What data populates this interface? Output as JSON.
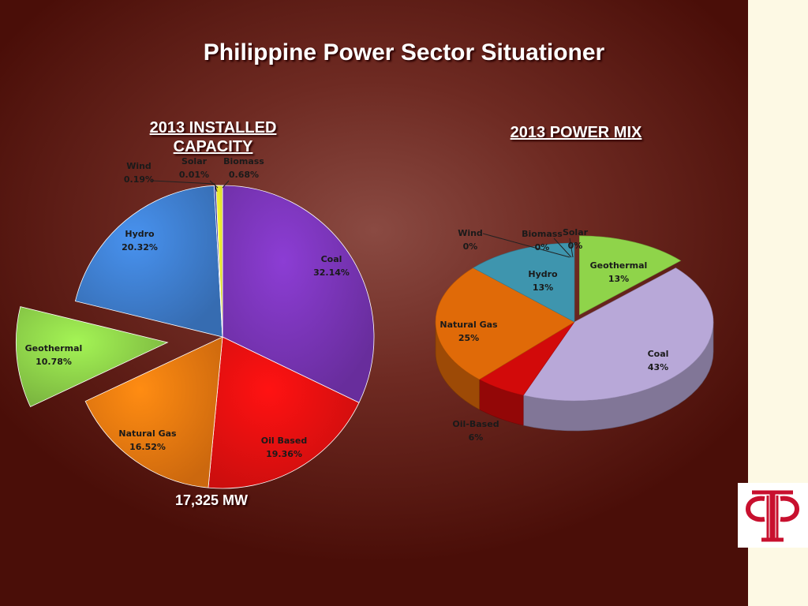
{
  "title": "Philippine Power Sector Situationer",
  "chart_data": [
    {
      "type": "pie",
      "title_line1": "2013 INSTALLED",
      "title_line2": "CAPACITY",
      "footer": "17,325 MW",
      "categories": [
        "Coal",
        "Oil Based",
        "Natural Gas",
        "Geothermal",
        "Hydro",
        "Wind",
        "Solar",
        "Biomass"
      ],
      "values": [
        32.14,
        19.36,
        16.52,
        10.78,
        20.32,
        0.19,
        0.01,
        0.68
      ],
      "labels": [
        "32.14%",
        "19.36%",
        "16.52%",
        "10.78%",
        "20.32%",
        "0.19%",
        "0.01%",
        "0.68%"
      ],
      "colors": [
        "#7a35b8",
        "#f01010",
        "#f07a10",
        "#8fd44a",
        "#3f7fd0",
        "#1a1a8a",
        "#e8e030",
        "#f2f230"
      ],
      "exploded": "Geothermal"
    },
    {
      "type": "pie",
      "title": "2013 POWER MIX",
      "categories": [
        "Geothermal",
        "Coal",
        "Oil-Based",
        "Natural Gas",
        "Hydro",
        "Wind",
        "Biomass",
        "Solar"
      ],
      "values": [
        13,
        43,
        6,
        25,
        13,
        0,
        0,
        0
      ],
      "labels": [
        "13%",
        "43%",
        "6%",
        "25%",
        "13%",
        "0%",
        "0%",
        "0%"
      ],
      "colors": [
        "#8fd44a",
        "#b8a8d8",
        "#d20a0a",
        "#e06a08",
        "#3e95ae",
        "#1a1a8a",
        "#e8e030",
        "#f2f230"
      ],
      "exploded": "Geothermal",
      "style": "3d"
    }
  ]
}
